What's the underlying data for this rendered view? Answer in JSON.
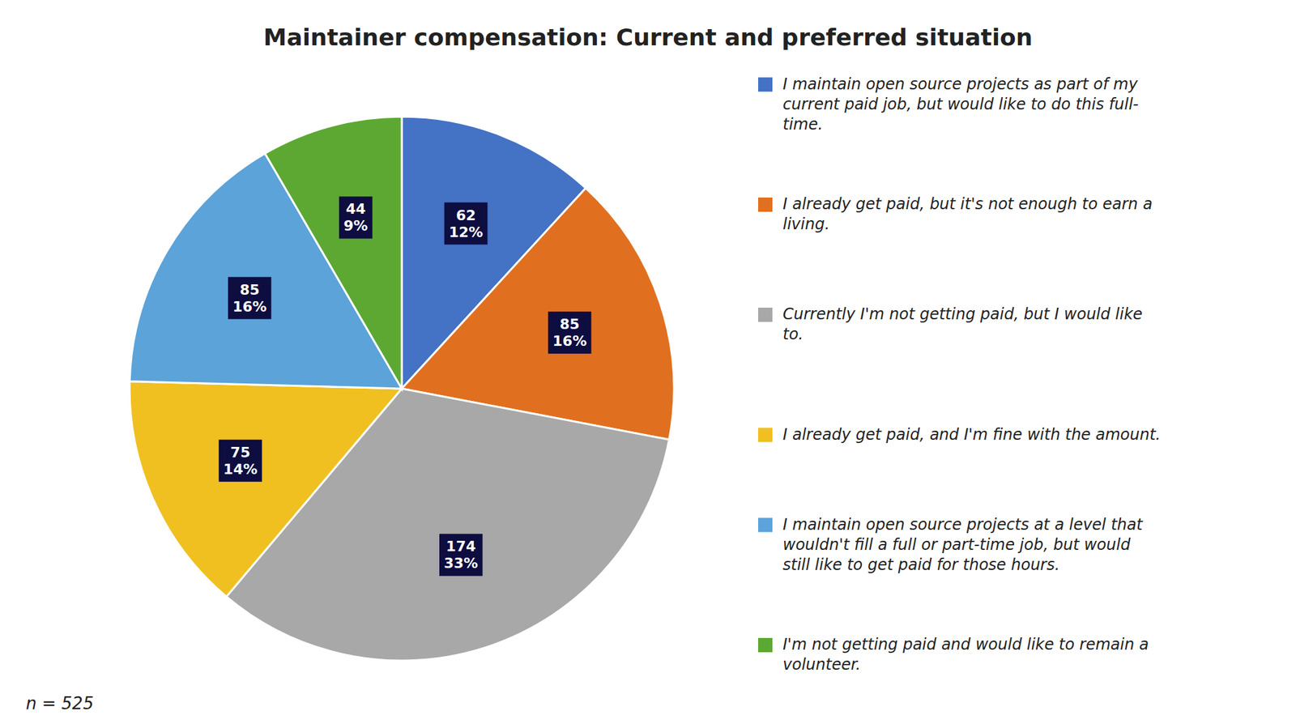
{
  "chart_data": {
    "type": "pie",
    "title": "Maintainer compensation: Current and preferred situation",
    "annotation": "n = 525",
    "categories": [
      "I maintain open source projects as part of my\ncurrent paid job, but would like to do this full-\ntime.",
      "I already get paid, but it's not enough to earn a\nliving.",
      "Currently I'm not getting paid, but I would like\nto.",
      "I already get paid, and I'm fine with the amount.",
      "I maintain open source projects at a level that\nwouldn't fill a full or part-time job, but would\nstill like to get paid for those hours.",
      "I'm not getting paid and would like to remain a\nvolunteer."
    ],
    "values": [
      62,
      85,
      174,
      75,
      85,
      44
    ],
    "percentages": [
      12,
      16,
      33,
      14,
      16,
      9
    ],
    "percentage_labels": [
      "12%",
      "16%",
      "33%",
      "14%",
      "16%",
      "9%"
    ],
    "colors": [
      "#4472C4",
      "#E07020",
      "#A8A8A8",
      "#F0C020",
      "#5BA3D9",
      "#5DA832"
    ],
    "data_labels": true,
    "legend": "right"
  }
}
